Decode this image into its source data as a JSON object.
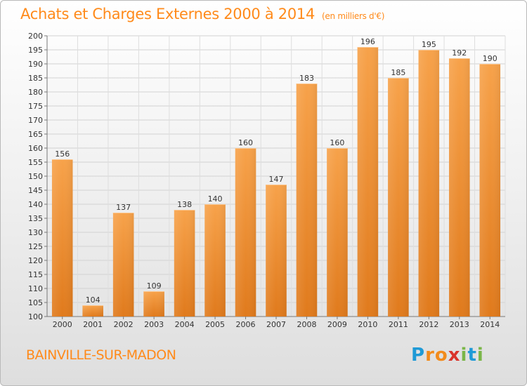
{
  "header": {
    "title": "Achats et Charges Externes 2000 à 2014",
    "subtitle": "(en milliers d'€)"
  },
  "footer": {
    "place": "BAINVILLE-SUR-MADON",
    "logo_letters": [
      "P",
      "r",
      "o",
      "x",
      "i",
      "t",
      "i"
    ],
    "logo_colors": [
      "#1f9ad6",
      "#f28b1c",
      "#f28b1c",
      "#d9342b",
      "#7ab648",
      "#1f9ad6",
      "#7ab648"
    ]
  },
  "chart_data": {
    "type": "bar",
    "categories": [
      "2000",
      "2001",
      "2002",
      "2003",
      "2004",
      "2005",
      "2006",
      "2007",
      "2008",
      "2009",
      "2010",
      "2011",
      "2012",
      "2013",
      "2014"
    ],
    "values": [
      156,
      104,
      137,
      109,
      138,
      140,
      160,
      147,
      183,
      160,
      196,
      185,
      195,
      192,
      190
    ],
    "ylim": [
      100,
      200
    ],
    "yticks": [
      100,
      105,
      110,
      115,
      120,
      125,
      130,
      135,
      140,
      145,
      150,
      155,
      160,
      165,
      170,
      175,
      180,
      185,
      190,
      195,
      200
    ],
    "bar_color": "#f29a3c",
    "grid": true
  }
}
